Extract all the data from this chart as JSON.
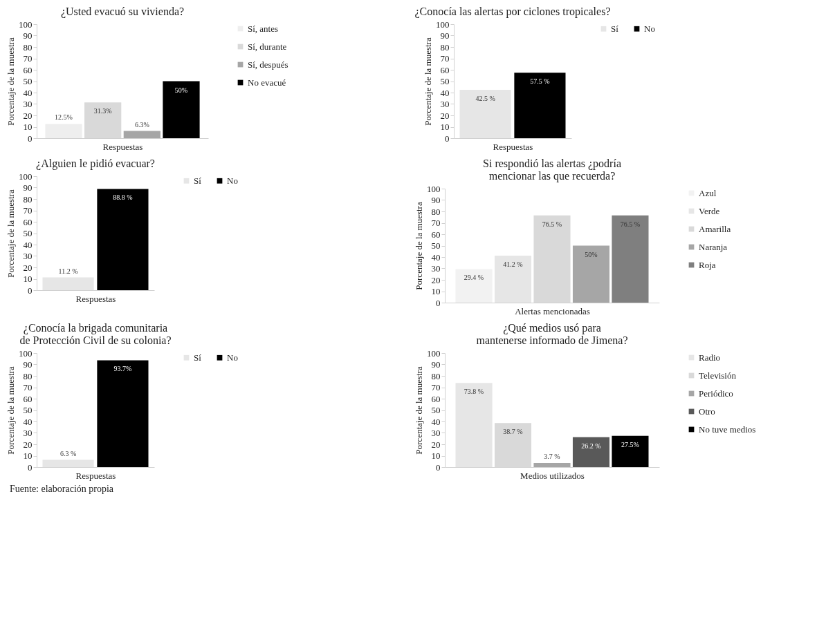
{
  "chart_data": [
    {
      "type": "bar",
      "title": "¿Usted evacuó su vivienda?",
      "xlabel": "Respuestas",
      "ylabel": "Porcentaje de la muestra",
      "categories": [
        null
      ],
      "ylim": [
        0,
        100
      ],
      "yticks": [
        0,
        10,
        20,
        30,
        40,
        50,
        60,
        70,
        80,
        90,
        100
      ],
      "legend": "right",
      "series": [
        {
          "name": "Sí, antes",
          "color": "#eeeeee",
          "values": [
            12.5
          ],
          "value_labels": [
            "12.5%"
          ]
        },
        {
          "name": "Sí, durante",
          "color": "#d9d9d9",
          "values": [
            31.3
          ],
          "value_labels": [
            "31.3%"
          ]
        },
        {
          "name": "Sí, después",
          "color": "#a6a6a6",
          "values": [
            6.3
          ],
          "value_labels": [
            "6.3%"
          ]
        },
        {
          "name": "No evacué",
          "color": "#000000",
          "values": [
            50
          ],
          "value_labels": [
            "50%"
          ]
        }
      ]
    },
    {
      "type": "bar",
      "title": "¿Conocía las alertas por ciclones tropicales?",
      "xlabel": "Respuestas",
      "ylabel": "Porcentaje de la muestra",
      "categories": [
        null
      ],
      "ylim": [
        0,
        100
      ],
      "yticks": [
        0,
        10,
        20,
        30,
        40,
        50,
        60,
        70,
        80,
        90,
        100
      ],
      "legend": "right",
      "series": [
        {
          "name": "Sí",
          "color": "#e6e6e6",
          "values": [
            42.5
          ],
          "value_labels": [
            "42.5 %"
          ]
        },
        {
          "name": "No",
          "color": "#000000",
          "values": [
            57.5
          ],
          "value_labels": [
            "57.5 %"
          ]
        }
      ]
    },
    {
      "type": "bar",
      "title": "¿Alguien le pidió evacuar?",
      "xlabel": "Respuestas",
      "ylabel": "Porcentaje de la muestra",
      "categories": [
        null
      ],
      "ylim": [
        0,
        100
      ],
      "yticks": [
        0,
        10,
        20,
        30,
        40,
        50,
        60,
        70,
        80,
        90,
        100
      ],
      "legend": "right",
      "series": [
        {
          "name": "Sí",
          "color": "#e6e6e6",
          "values": [
            11.2
          ],
          "value_labels": [
            "11.2 %"
          ]
        },
        {
          "name": "No",
          "color": "#000000",
          "values": [
            88.8
          ],
          "value_labels": [
            "88.8 %"
          ]
        }
      ]
    },
    {
      "type": "bar",
      "title": "Si respondió las alertas ¿podría mencionar las que recuerda?",
      "xlabel": "Alertas mencionadas",
      "ylabel": "Porcentaje de la muestra",
      "categories": [
        null
      ],
      "ylim": [
        0,
        100
      ],
      "yticks": [
        0,
        10,
        20,
        30,
        40,
        50,
        60,
        70,
        80,
        90,
        100
      ],
      "legend": "right",
      "series": [
        {
          "name": "Azul",
          "color": "#f2f2f2",
          "values": [
            29.4
          ],
          "value_labels": [
            "29.4 %"
          ]
        },
        {
          "name": "Verde",
          "color": "#e6e6e6",
          "values": [
            41.2
          ],
          "value_labels": [
            "41.2 %"
          ]
        },
        {
          "name": "Amarilla",
          "color": "#d9d9d9",
          "values": [
            76.5
          ],
          "value_labels": [
            "76.5 %"
          ]
        },
        {
          "name": "Naranja",
          "color": "#a6a6a6",
          "values": [
            50
          ],
          "value_labels": [
            "50%"
          ]
        },
        {
          "name": "Roja",
          "color": "#7f7f7f",
          "values": [
            76.5
          ],
          "value_labels": [
            "76.5 %"
          ]
        }
      ]
    },
    {
      "type": "bar",
      "title": "¿Conocía la brigada comunitaria de Protección Civil de su colonia?",
      "xlabel": "Respuestas",
      "ylabel": "Porcentaje de la muestra",
      "categories": [
        null
      ],
      "ylim": [
        0,
        100
      ],
      "yticks": [
        0,
        10,
        20,
        30,
        40,
        50,
        60,
        70,
        80,
        90,
        100
      ],
      "legend": "right",
      "annotations": [
        "Fuente: elaboración propia"
      ],
      "series": [
        {
          "name": "Sí",
          "color": "#e6e6e6",
          "values": [
            6.3
          ],
          "value_labels": [
            "6.3 %"
          ]
        },
        {
          "name": "No",
          "color": "#000000",
          "values": [
            93.7
          ],
          "value_labels": [
            "93.7%"
          ]
        }
      ]
    },
    {
      "type": "bar",
      "title": "¿Qué medios usó para mantenerse informado de Jimena?",
      "xlabel": "Medios utilizados",
      "ylabel": "Porcentaje de la muestra",
      "categories": [
        null
      ],
      "ylim": [
        0,
        100
      ],
      "yticks": [
        0,
        10,
        20,
        30,
        40,
        50,
        60,
        70,
        80,
        90,
        100
      ],
      "legend": "right",
      "series": [
        {
          "name": "Radio",
          "color": "#e6e6e6",
          "values": [
            73.8
          ],
          "value_labels": [
            "73.8 %"
          ]
        },
        {
          "name": "Televisión",
          "color": "#d9d9d9",
          "values": [
            38.7
          ],
          "value_labels": [
            "38.7 %"
          ]
        },
        {
          "name": "Periódico",
          "color": "#a6a6a6",
          "values": [
            3.7
          ],
          "value_labels": [
            "3.7 %"
          ]
        },
        {
          "name": "Otro",
          "color": "#595959",
          "values": [
            26.2
          ],
          "value_labels": [
            "26.2 %"
          ]
        },
        {
          "name": "No tuve medios",
          "color": "#000000",
          "values": [
            27.5
          ],
          "value_labels": [
            "27.5%"
          ]
        }
      ]
    }
  ]
}
